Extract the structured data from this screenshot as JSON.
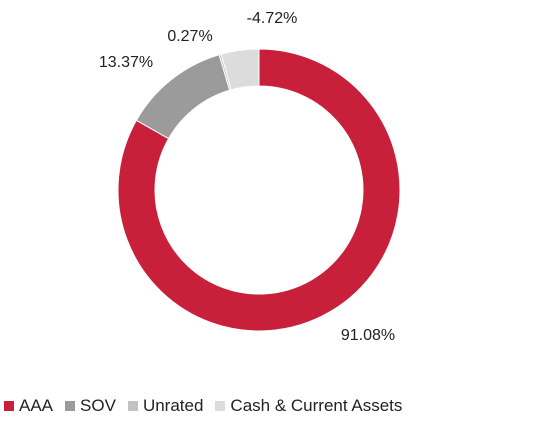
{
  "chart_data": {
    "type": "pie",
    "variant": "donut",
    "title": "",
    "categories": [
      "AAA",
      "SOV",
      "Unrated",
      "Cash & Current Assets"
    ],
    "values": [
      91.08,
      13.37,
      0.27,
      -4.72
    ],
    "slice_labels": [
      "91.08%",
      "13.37%",
      "0.27%",
      "-4.72%"
    ],
    "colors": [
      "#c8203a",
      "#9b9b9b",
      "#c2c2c2",
      "#dcdcdc"
    ],
    "legend_position": "bottom"
  }
}
